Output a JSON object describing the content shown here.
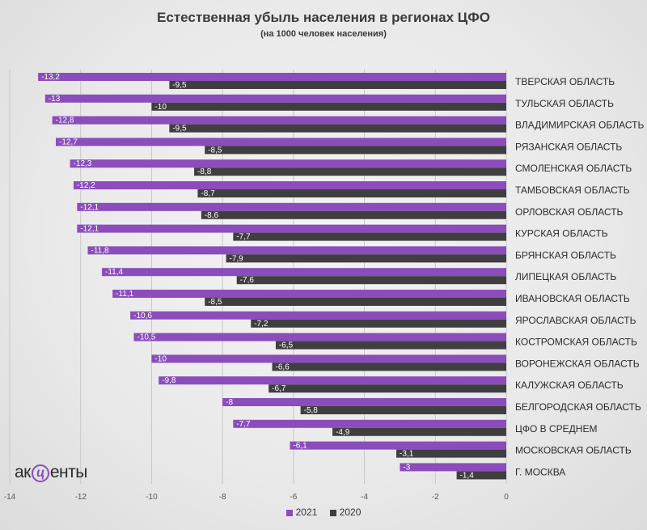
{
  "colors": {
    "s2021": "#8a4dbb",
    "s2020": "#3f3f3f",
    "grid": "#c8c8c8"
  },
  "logo": {
    "pre": "ак",
    "mark": "ц",
    "post": "енты"
  },
  "chart_data": {
    "type": "bar",
    "orientation": "horizontal",
    "title": "Естественная убыль населения в регионах ЦФО",
    "subtitle": "(на 1000 человек населения)",
    "xlabel": "",
    "ylabel": "",
    "xlim": [
      -14,
      0
    ],
    "xticks": [
      "-14",
      "-12",
      "-10",
      "-8",
      "-6",
      "-4",
      "-2",
      "0"
    ],
    "grid": "vertical",
    "legend_position": "bottom",
    "categories": [
      "ТВЕРСКАЯ ОБЛАСТЬ",
      "ТУЛЬСКАЯ ОБЛАСТЬ",
      "ВЛАДИМИРСКАЯ ОБЛАСТЬ",
      "РЯЗАНСКАЯ ОБЛАСТЬ",
      "СМОЛЕНСКАЯ ОБЛАСТЬ",
      "ТАМБОВСКАЯ ОБЛАСТЬ",
      "ОРЛОВСКАЯ ОБЛАСТЬ",
      "КУРСКАЯ ОБЛАСТЬ",
      "БРЯНСКАЯ ОБЛАСТЬ",
      "ЛИПЕЦКАЯ ОБЛАСТЬ",
      "ИВАНОВСКАЯ ОБЛАСТЬ",
      "ЯРОСЛАВСКАЯ ОБЛАСТЬ",
      "КОСТРОМСКАЯ ОБЛАСТЬ",
      "ВОРОНЕЖСКАЯ ОБЛАСТЬ",
      "КАЛУЖСКАЯ ОБЛАСТЬ",
      "БЕЛГОРОДСКАЯ ОБЛАСТЬ",
      "ЦФО В СРЕДНЕМ",
      "МОСКОВСКАЯ ОБЛАСТЬ",
      "Г. МОСКВА"
    ],
    "series": [
      {
        "name": "2021",
        "values": [
          -13.2,
          -13,
          -12.8,
          -12.7,
          -12.3,
          -12.2,
          -12.1,
          -12.1,
          -11.8,
          -11.4,
          -11.1,
          -10.6,
          -10.5,
          -10,
          -9.8,
          -8,
          -7.7,
          -6.1,
          -3
        ],
        "labels": [
          "-13,2",
          "-13",
          "-12,8",
          "-12,7",
          "-12,3",
          "-12,2",
          "-12,1",
          "-12,1",
          "-11,8",
          "-11,4",
          "-11,1",
          "-10,6",
          "-10,5",
          "-10",
          "-9,8",
          "-8",
          "-7,7",
          "-6,1",
          "-3"
        ]
      },
      {
        "name": "2020",
        "values": [
          -9.5,
          -10,
          -9.5,
          -8.5,
          -8.8,
          -8.7,
          -8.6,
          -7.7,
          -7.9,
          -7.6,
          -8.5,
          -7.2,
          -6.5,
          -6.6,
          -6.7,
          -5.8,
          -4.9,
          -3.1,
          -1.4
        ],
        "labels": [
          "-9,5",
          "-10",
          "-9,5",
          "-8,5",
          "-8,8",
          "-8,7",
          "-8,6",
          "-7,7",
          "-7,9",
          "-7,6",
          "-8,5",
          "-7,2",
          "-6,5",
          "-6,6",
          "-6,7",
          "-5,8",
          "-4,9",
          "-3,1",
          "-1,4"
        ]
      }
    ]
  }
}
